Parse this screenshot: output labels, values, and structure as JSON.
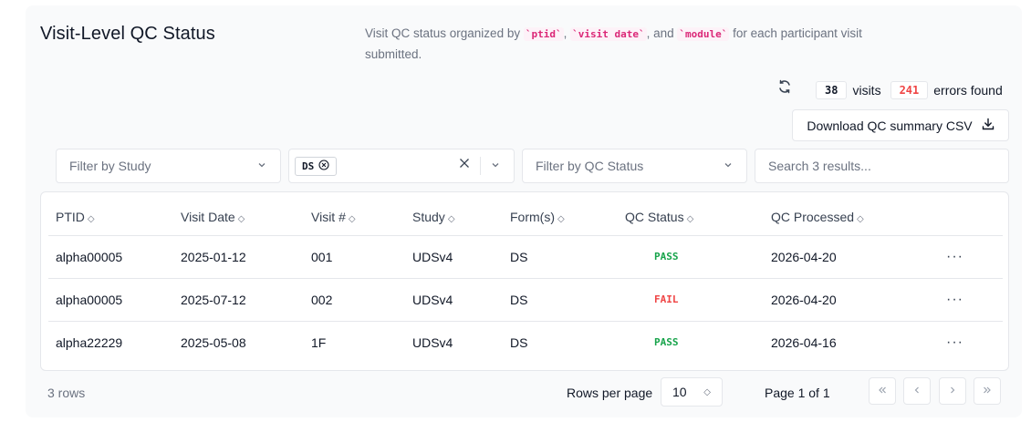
{
  "header": {
    "title": "Visit-Level QC Status",
    "description_prefix": "Visit QC status organized by ",
    "code_ptid": "`ptid`",
    "sep1": ", ",
    "code_visit_date": "`visit date`",
    "sep2": ", and ",
    "code_module": "`module`",
    "description_suffix": " for each participant visit submitted."
  },
  "stats": {
    "visits_count": "38",
    "visits_label": "visits",
    "errors_count": "241",
    "errors_label": "errors found"
  },
  "actions": {
    "download_label": "Download QC summary CSV"
  },
  "filters": {
    "study_placeholder": "Filter by Study",
    "module_chip": "DS",
    "qc_status_placeholder": "Filter by QC Status",
    "search_placeholder": "Search 3 results..."
  },
  "table": {
    "columns": [
      "PTID",
      "Visit Date",
      "Visit #",
      "Study",
      "Form(s)",
      "QC Status",
      "QC Processed"
    ],
    "rows": [
      {
        "ptid": "alpha00005",
        "visit_date": "2025-01-12",
        "visit_num": "001",
        "study": "UDSv4",
        "forms": "DS",
        "qc_status": "PASS",
        "qc_processed": "2026-04-20"
      },
      {
        "ptid": "alpha00005",
        "visit_date": "2025-07-12",
        "visit_num": "002",
        "study": "UDSv4",
        "forms": "DS",
        "qc_status": "FAIL",
        "qc_processed": "2026-04-20"
      },
      {
        "ptid": "alpha22229",
        "visit_date": "2025-05-08",
        "visit_num": "1F",
        "study": "UDSv4",
        "forms": "DS",
        "qc_status": "PASS",
        "qc_processed": "2026-04-16"
      }
    ],
    "row_menu": "···"
  },
  "footer": {
    "rows_count": "3 rows",
    "rows_per_page_label": "Rows per page",
    "rows_per_page_value": "10",
    "page_info": "Page 1 of 1"
  },
  "icons": {
    "refresh": "refresh-icon",
    "download": "download-icon",
    "chevron": "chevron-down-icon",
    "clear": "close-icon",
    "sort": "sort-icon"
  },
  "colors": {
    "pass": "#16a34a",
    "fail": "#ef4444",
    "code": "#db2777"
  }
}
